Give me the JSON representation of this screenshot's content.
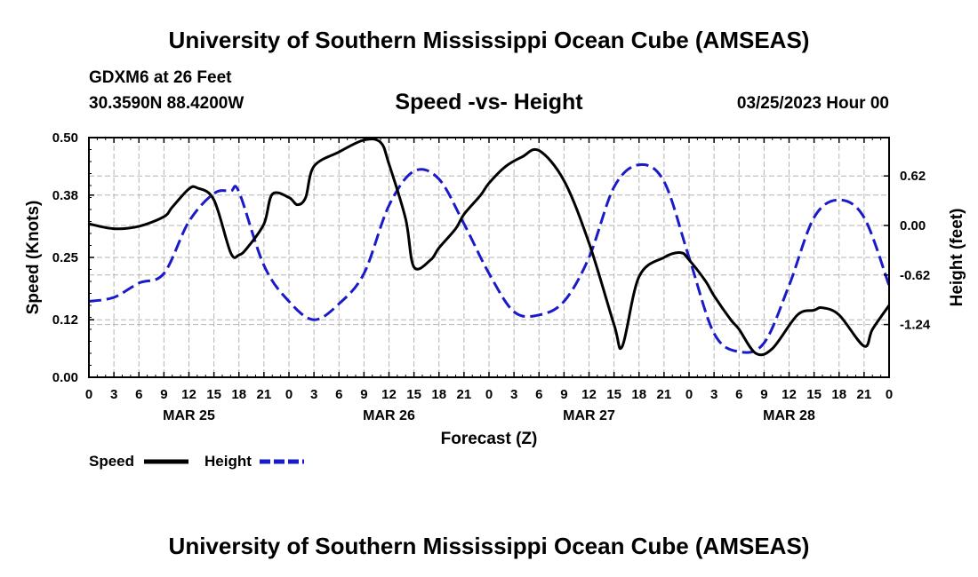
{
  "header": {
    "title": "University of Southern Mississippi Ocean Cube (AMSEAS)",
    "station": "GDXM6 at 26 Feet",
    "coords": "30.3590N  88.4200W",
    "subtitle": "Speed -vs- Height",
    "datetime": "03/25/2023 Hour 00"
  },
  "footer": {
    "title": "University of Southern Mississippi Ocean Cube (AMSEAS)"
  },
  "legend": {
    "speed_label": "Speed",
    "height_label": "Height"
  },
  "chart_data": {
    "type": "line",
    "title": "Speed -vs- Height",
    "xlabel": "Forecast (Z)",
    "ylabel": "Speed (Knots)",
    "y2label": "Height (feet)",
    "xlim": [
      0,
      96
    ],
    "ylim": [
      0,
      0.5
    ],
    "y2lim": [
      -1.9,
      1.1
    ],
    "grid": true,
    "legend_position": "bottom-left",
    "x_ticks": [
      0,
      3,
      6,
      9,
      12,
      15,
      18,
      21,
      24,
      27,
      30,
      33,
      36,
      39,
      42,
      45,
      48,
      51,
      54,
      57,
      60,
      63,
      66,
      69,
      72,
      75,
      78,
      81,
      84,
      87,
      90,
      93,
      96
    ],
    "x_tick_labels": [
      "0",
      "3",
      "6",
      "9",
      "12",
      "15",
      "18",
      "21",
      "0",
      "3",
      "6",
      "9",
      "12",
      "15",
      "18",
      "21",
      "0",
      "3",
      "6",
      "9",
      "12",
      "15",
      "18",
      "21",
      "0",
      "3",
      "6",
      "9",
      "12",
      "15",
      "18",
      "21",
      "0"
    ],
    "date_labels": [
      {
        "label": "MAR 25",
        "x": 12
      },
      {
        "label": "MAR 26",
        "x": 36
      },
      {
        "label": "MAR 27",
        "x": 60
      },
      {
        "label": "MAR 28",
        "x": 84
      }
    ],
    "y_ticks": [
      0.0,
      0.12,
      0.25,
      0.38,
      0.5
    ],
    "y_tick_labels": [
      "0.00",
      "0.12",
      "0.25",
      "0.38",
      "0.50"
    ],
    "y2_ticks": [
      0.62,
      0.0,
      -0.62,
      -1.24
    ],
    "y2_tick_labels": [
      "0.62",
      "0.00",
      "-0.62",
      "-1.24"
    ],
    "series": [
      {
        "name": "Speed",
        "axis": "left",
        "color": "#000000",
        "dash": "solid",
        "x": [
          0,
          3,
          6,
          9,
          10,
          12,
          13,
          15,
          17,
          18,
          19,
          21,
          22,
          24,
          25,
          26,
          27,
          30,
          33,
          35,
          36,
          38,
          39,
          41,
          42,
          44,
          45,
          47,
          48,
          50,
          52,
          54,
          57,
          60,
          63,
          64,
          66,
          69,
          71,
          72,
          74,
          75,
          77,
          78,
          80,
          82,
          85,
          87,
          88,
          90,
          93,
          94,
          96
        ],
        "values": [
          0.32,
          0.31,
          0.315,
          0.335,
          0.355,
          0.393,
          0.395,
          0.37,
          0.26,
          0.255,
          0.27,
          0.32,
          0.382,
          0.375,
          0.36,
          0.375,
          0.44,
          0.47,
          0.495,
          0.49,
          0.445,
          0.33,
          0.23,
          0.245,
          0.27,
          0.31,
          0.34,
          0.38,
          0.405,
          0.44,
          0.46,
          0.473,
          0.41,
          0.28,
          0.11,
          0.065,
          0.21,
          0.25,
          0.26,
          0.245,
          0.2,
          0.17,
          0.12,
          0.1,
          0.05,
          0.06,
          0.13,
          0.14,
          0.145,
          0.13,
          0.065,
          0.1,
          0.15
        ]
      },
      {
        "name": "Height",
        "axis": "right",
        "color": "#1a1ac8",
        "dash": "dashed",
        "x": [
          0,
          3,
          6,
          9,
          12,
          15,
          17,
          18,
          21,
          24,
          27,
          30,
          33,
          36,
          39,
          42,
          45,
          48,
          51,
          54,
          57,
          60,
          63,
          66,
          69,
          72,
          75,
          78,
          81,
          84,
          87,
          90,
          93,
          96
        ],
        "values": [
          -0.95,
          -0.9,
          -0.72,
          -0.6,
          0.05,
          0.4,
          0.43,
          0.42,
          -0.5,
          -0.95,
          -1.18,
          -0.98,
          -0.6,
          0.25,
          0.68,
          0.58,
          0.02,
          -0.6,
          -1.08,
          -1.12,
          -0.95,
          -0.4,
          0.48,
          0.76,
          0.55,
          -0.4,
          -1.35,
          -1.58,
          -1.47,
          -0.75,
          0.1,
          0.32,
          0.1,
          -0.75
        ]
      }
    ]
  }
}
